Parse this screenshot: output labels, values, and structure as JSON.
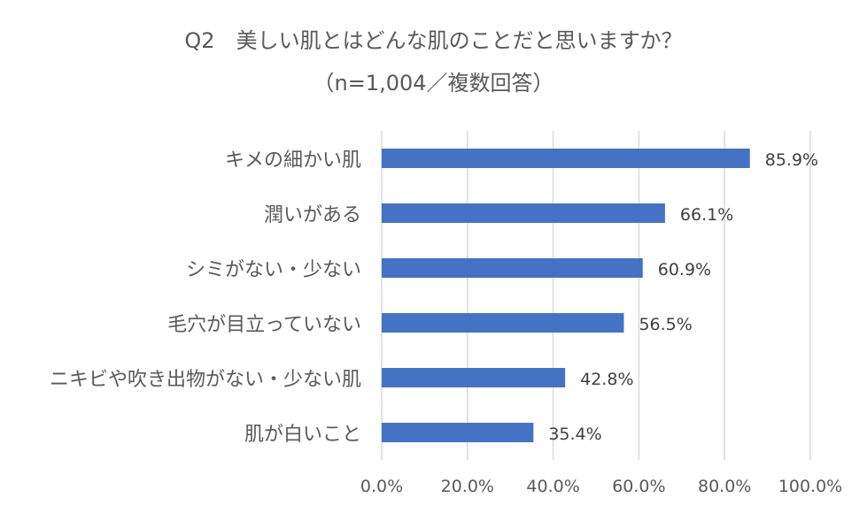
{
  "chart_data": {
    "type": "bar",
    "orientation": "horizontal",
    "title": "Q2　美しい肌とはどんな肌のことだと思いますか？",
    "subtitle": "（n=1,004／複数回答）",
    "categories": [
      "キメの細かい肌",
      "潤いがある",
      "シミがない・少ない",
      "毛穴が目立っていない",
      "ニキビや吹き出物がない・少ない肌",
      "肌が白いこと"
    ],
    "values": [
      85.9,
      66.1,
      60.9,
      56.5,
      42.8,
      35.4
    ],
    "data_labels": [
      "85.9%",
      "66.1%",
      "60.9%",
      "56.5%",
      "42.8%",
      "35.4%"
    ],
    "xlim": [
      0,
      100
    ],
    "x_ticks": [
      0,
      20,
      40,
      60,
      80,
      100
    ],
    "x_tick_labels": [
      "0.0%",
      "20.0%",
      "40.0%",
      "60.0%",
      "80.0%",
      "100.0%"
    ],
    "xlabel": "",
    "ylabel": "",
    "grid": true,
    "legend": "none",
    "bar_color": "#4472C4",
    "grid_color": "#D9D9D9"
  }
}
